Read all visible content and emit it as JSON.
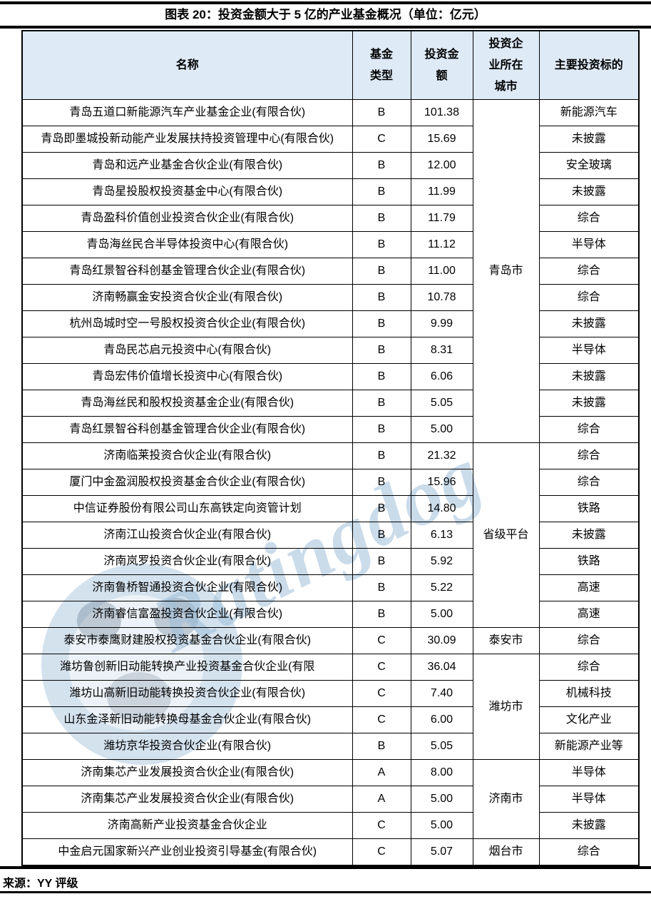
{
  "title": "图表 20：投资金额大于 5 亿的产业基金概况（单位：亿元）",
  "source": {
    "label": "来源：YY 评级"
  },
  "watermark": {
    "text": "Ratingdog"
  },
  "colors": {
    "header_bg": "#DEEAF6",
    "border": "#000000",
    "watermark_text": "#9fbfda",
    "watermark_circle": "#7ba7cc"
  },
  "table": {
    "headers": [
      "名称",
      "基金\n类型",
      "投资金\n额",
      "投资企\n业所在\n城市",
      "主要投资标的"
    ],
    "city_groups": [
      {
        "city": "青岛市",
        "rows": [
          {
            "name": "青岛五道口新能源汽车产业基金企业(有限合伙)",
            "type": "B",
            "amount": "101.38",
            "target": "新能源汽车"
          },
          {
            "name": "青岛即墨城投新动能产业发展扶持投资管理中心(有限合伙)",
            "type": "C",
            "amount": "15.69",
            "target": "未披露"
          },
          {
            "name": "青岛和远产业基金合伙企业(有限合伙)",
            "type": "B",
            "amount": "12.00",
            "target": "安全玻璃"
          },
          {
            "name": "青岛星投股权投资基金中心(有限合伙)",
            "type": "B",
            "amount": "11.99",
            "target": "未披露"
          },
          {
            "name": "青岛盈科价值创业投资合伙企业(有限合伙)",
            "type": "B",
            "amount": "11.79",
            "target": "综合"
          },
          {
            "name": "青岛海丝民合半导体投资中心(有限合伙)",
            "type": "B",
            "amount": "11.12",
            "target": "半导体"
          },
          {
            "name": "青岛红景智谷科创基金管理合伙企业(有限合伙)",
            "type": "B",
            "amount": "11.00",
            "target": "综合"
          },
          {
            "name": "济南畅赢金安投资合伙企业(有限合伙)",
            "type": "B",
            "amount": "10.78",
            "target": "综合"
          },
          {
            "name": "杭州岛城时空一号股权投资合伙企业(有限合伙)",
            "type": "B",
            "amount": "9.99",
            "target": "未披露"
          },
          {
            "name": "青岛民芯启元投资中心(有限合伙)",
            "type": "B",
            "amount": "8.31",
            "target": "半导体"
          },
          {
            "name": "青岛宏伟价值增长投资中心(有限合伙)",
            "type": "B",
            "amount": "6.06",
            "target": "未披露"
          },
          {
            "name": "青岛海丝民和股权投资基金企业(有限合伙)",
            "type": "B",
            "amount": "5.05",
            "target": "未披露"
          },
          {
            "name": "青岛红景智谷科创基金管理合伙企业(有限合伙)",
            "type": "B",
            "amount": "5.00",
            "target": "综合"
          }
        ]
      },
      {
        "city": "省级平台",
        "rows": [
          {
            "name": "济南临莱投资合伙企业(有限合伙)",
            "type": "B",
            "amount": "21.32",
            "target": "综合"
          },
          {
            "name": "厦门中金盈润股权投资基金合伙企业(有限合伙)",
            "type": "B",
            "amount": "15.96",
            "target": "综合"
          },
          {
            "name": "中信证券股份有限公司山东高铁定向资管计划",
            "type": "B",
            "amount": "14.80",
            "target": "铁路"
          },
          {
            "name": "济南江山投资合伙企业(有限合伙)",
            "type": "B",
            "amount": "6.13",
            "target": "未披露"
          },
          {
            "name": "济南岚罗投资合伙企业(有限合伙)",
            "type": "B",
            "amount": "5.92",
            "target": "铁路"
          },
          {
            "name": "济南鲁桥智通投资合伙企业(有限合伙)",
            "type": "B",
            "amount": "5.22",
            "target": "高速"
          },
          {
            "name": "济南睿信富盈投资合伙企业(有限合伙)",
            "type": "B",
            "amount": "5.00",
            "target": "高速"
          }
        ]
      },
      {
        "city": "泰安市",
        "rows": [
          {
            "name": "泰安市泰鹰财建股权投资基金合伙企业(有限合伙)",
            "type": "C",
            "amount": "30.09",
            "target": "综合"
          }
        ]
      },
      {
        "city": "潍坊市",
        "rows": [
          {
            "name": "潍坊鲁创新旧动能转换产业投资基金合伙企业(有限",
            "type": "C",
            "amount": "36.04",
            "target": "综合"
          },
          {
            "name": "潍坊山高新旧动能转换投资合伙企业(有限合伙)",
            "type": "C",
            "amount": "7.40",
            "target": "机械科技"
          },
          {
            "name": "山东金泽新旧动能转换母基金合伙企业(有限合伙)",
            "type": "C",
            "amount": "6.00",
            "target": "文化产业"
          },
          {
            "name": "潍坊京华投资合伙企业(有限合伙)",
            "type": "B",
            "amount": "5.05",
            "target": "新能源产业等"
          }
        ]
      },
      {
        "city": "济南市",
        "rows": [
          {
            "name": "济南集芯产业发展投资合伙企业(有限合伙)",
            "type": "A",
            "amount": "8.00",
            "target": "半导体"
          },
          {
            "name": "济南集芯产业发展投资合伙企业(有限合伙)",
            "type": "A",
            "amount": "5.00",
            "target": "半导体"
          },
          {
            "name": "济南高新产业投资基金合伙企业",
            "type": "C",
            "amount": "5.00",
            "target": "未披露"
          }
        ]
      },
      {
        "city": "烟台市",
        "rows": [
          {
            "name": "中金启元国家新兴产业创业投资引导基金(有限合伙)",
            "type": "C",
            "amount": "5.07",
            "target": "综合"
          }
        ]
      }
    ]
  }
}
